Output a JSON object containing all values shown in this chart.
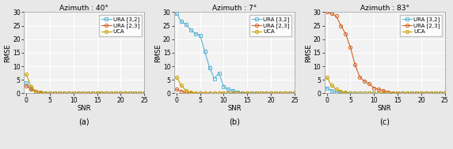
{
  "titles": [
    "Azimuth : 40°",
    "Azimuth : 7°",
    "Azimuth : 83°"
  ],
  "xlabels": [
    "SNR",
    "SNR",
    "SNR"
  ],
  "ylabels": [
    "RMSE",
    "RMSE",
    "RMSE"
  ],
  "subtitles": [
    "(a)",
    "(b)",
    "(c)"
  ],
  "ylim": [
    0,
    30
  ],
  "xlim": [
    -0.5,
    25
  ],
  "yticks": [
    0,
    5,
    10,
    15,
    20,
    25,
    30
  ],
  "xticks": [
    0,
    5,
    10,
    15,
    20,
    25
  ],
  "legend_labels": [
    "URA [3,2]",
    "URA [2,3]",
    "UCA"
  ],
  "colors": [
    "#5ab4d6",
    "#d46020",
    "#c8a000"
  ],
  "markers": [
    "s",
    "o",
    "o"
  ],
  "snr": [
    0,
    1,
    2,
    3,
    4,
    5,
    6,
    7,
    8,
    9,
    10,
    11,
    12,
    13,
    14,
    15,
    16,
    17,
    18,
    19,
    20,
    21,
    22,
    23,
    24,
    25
  ],
  "plot_a": {
    "URA32": [
      3.8,
      2.0,
      0.8,
      0.3,
      0.1,
      0.05,
      0.03,
      0.02,
      0.02,
      0.02,
      0.02,
      0.02,
      0.01,
      0.01,
      0.01,
      0.01,
      0.01,
      0.01,
      0.01,
      0.01,
      0.01,
      0.01,
      0.01,
      0.01,
      0.01,
      0.01
    ],
    "URA23": [
      2.8,
      1.5,
      0.6,
      0.2,
      0.08,
      0.04,
      0.02,
      0.02,
      0.01,
      0.01,
      0.01,
      0.01,
      0.01,
      0.01,
      0.01,
      0.01,
      0.01,
      0.01,
      0.01,
      0.01,
      0.01,
      0.01,
      0.01,
      0.01,
      0.01,
      0.01
    ],
    "UCA": [
      7.0,
      2.5,
      0.8,
      0.3,
      0.1,
      0.05,
      0.03,
      0.02,
      0.02,
      0.02,
      0.02,
      0.02,
      0.02,
      0.02,
      0.02,
      0.02,
      0.02,
      0.02,
      0.02,
      0.02,
      0.02,
      0.02,
      0.02,
      0.02,
      0.02,
      0.02
    ]
  },
  "plot_b": {
    "URA32": [
      29.5,
      26.5,
      25.5,
      23.5,
      22.0,
      21.5,
      15.5,
      9.5,
      5.5,
      7.5,
      2.5,
      1.5,
      1.0,
      0.5,
      0.2,
      0.1,
      0.05,
      0.03,
      0.02,
      0.02,
      0.02,
      0.02,
      0.02,
      0.02,
      0.02,
      0.02
    ],
    "URA23": [
      1.5,
      0.8,
      0.3,
      0.1,
      0.05,
      0.03,
      0.02,
      0.02,
      0.01,
      0.01,
      0.01,
      0.01,
      0.01,
      0.01,
      0.01,
      0.01,
      0.01,
      0.01,
      0.01,
      0.01,
      0.01,
      0.01,
      0.01,
      0.01,
      0.01,
      0.01
    ],
    "UCA": [
      6.0,
      3.0,
      1.0,
      0.3,
      0.1,
      0.05,
      0.03,
      0.02,
      0.02,
      0.02,
      0.02,
      0.02,
      0.02,
      0.02,
      0.02,
      0.02,
      0.02,
      0.02,
      0.02,
      0.02,
      0.02,
      0.02,
      0.02,
      0.02,
      0.02,
      0.02
    ]
  },
  "plot_c": {
    "URA32": [
      2.0,
      1.0,
      0.5,
      0.2,
      0.1,
      0.05,
      0.03,
      0.02,
      0.02,
      0.02,
      0.02,
      0.02,
      0.02,
      0.02,
      0.02,
      0.02,
      0.02,
      0.02,
      0.02,
      0.02,
      0.02,
      0.02,
      0.02,
      0.02,
      0.02,
      0.02
    ],
    "URA23": [
      30.0,
      29.5,
      28.5,
      25.0,
      22.0,
      17.0,
      10.5,
      6.0,
      4.5,
      3.5,
      2.0,
      1.5,
      1.0,
      0.5,
      0.2,
      0.1,
      0.05,
      0.03,
      0.02,
      0.02,
      0.02,
      0.02,
      0.02,
      0.02,
      0.02,
      0.02
    ],
    "UCA": [
      6.0,
      3.0,
      1.5,
      0.8,
      0.3,
      0.1,
      0.05,
      0.03,
      0.02,
      0.02,
      0.02,
      0.02,
      0.02,
      0.02,
      0.02,
      0.02,
      0.02,
      0.02,
      0.02,
      0.02,
      0.02,
      0.02,
      0.02,
      0.02,
      0.02,
      0.02
    ]
  },
  "fig_bg_color": "#e8e8e8",
  "ax_bg_color": "#f2f2f2",
  "grid_color": "#ffffff",
  "markersize": 3.0,
  "linewidth": 0.8,
  "fontsize_title": 6.5,
  "fontsize_label": 6.0,
  "fontsize_legend": 5.0,
  "fontsize_tick": 5.5,
  "fontsize_subtitle": 7.0
}
